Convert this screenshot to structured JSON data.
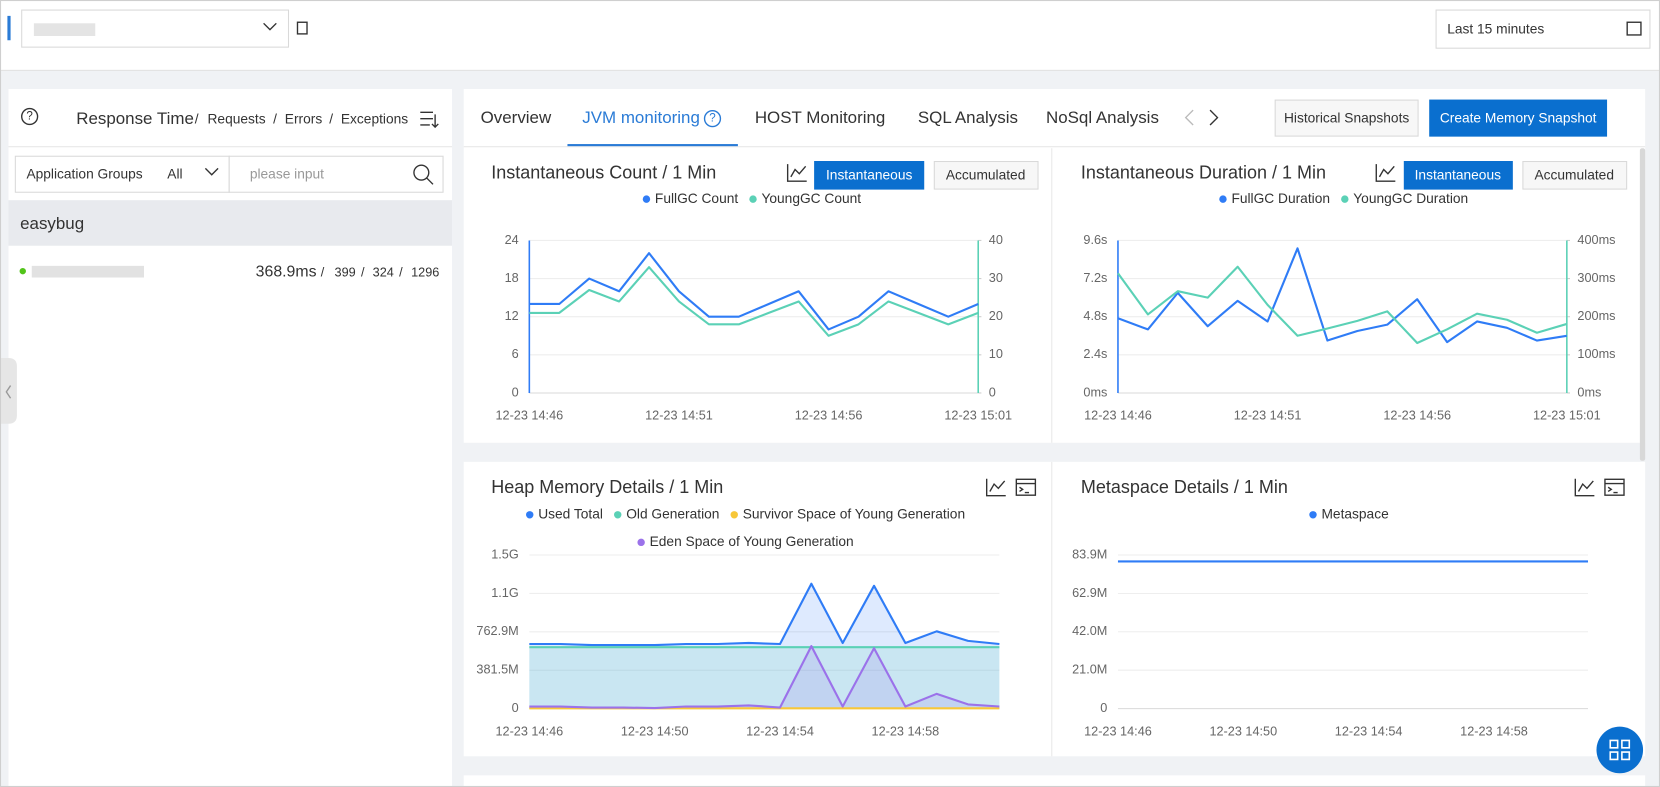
{
  "ui": {
    "time_range": "Last 15 minutes",
    "left": {
      "metrics": [
        "Response Time",
        "Requests",
        "Errors",
        "Exceptions"
      ],
      "separator": "/",
      "filter_label": "Application Groups",
      "filter_value": "All",
      "search_placeholder": "please input",
      "group": "easybug",
      "app": {
        "response_time": "368.9ms",
        "requests": 399,
        "errors": 324,
        "exceptions": 1296
      }
    },
    "tabs": [
      "Overview",
      "JVM monitoring",
      "HOST Monitoring",
      "SQL Analysis",
      "NoSql Analysis"
    ],
    "buttons": [
      "Historical Snapshots",
      "Create Memory Snapshot"
    ],
    "chart_modes": [
      "Instantaneous",
      "Accumulated"
    ]
  },
  "chart_data": [
    {
      "type": "line",
      "title": "Instantaneous Count / 1 Min",
      "categories": [
        "12-23 14:46",
        null,
        null,
        null,
        null,
        "12-23 14:51",
        null,
        null,
        null,
        null,
        "12-23 14:56",
        null,
        null,
        null,
        null,
        "12-23 15:01"
      ],
      "series": [
        {
          "name": "FullGC Count",
          "color": "#2f7cf6",
          "values": [
            14,
            14,
            18,
            16,
            22,
            16,
            12,
            12,
            14,
            16,
            10,
            12,
            16,
            14,
            12,
            14
          ]
        },
        {
          "name": "YoungGC Count",
          "color": "#5bd1b6",
          "axis": "y2",
          "values": [
            21,
            21,
            27,
            24,
            33,
            24,
            18,
            18,
            21,
            24,
            15,
            18,
            24,
            21,
            18,
            21
          ]
        }
      ],
      "ylim": [
        0,
        24
      ],
      "yticks": [
        0,
        6,
        12,
        18,
        24
      ],
      "y2lim": [
        0,
        40
      ],
      "y2ticks": [
        0,
        10,
        20,
        30,
        40
      ],
      "grid": true,
      "legend": "top"
    },
    {
      "type": "line",
      "title": "Instantaneous Duration / 1 Min",
      "categories": [
        "12-23 14:46",
        null,
        null,
        null,
        null,
        "12-23 14:51",
        null,
        null,
        null,
        null,
        "12-23 14:56",
        null,
        null,
        null,
        null,
        "12-23 15:01"
      ],
      "series": [
        {
          "name": "FullGC Duration",
          "color": "#2f7cf6",
          "values": [
            4.7,
            4.0,
            6.3,
            4.2,
            5.8,
            4.5,
            9.1,
            3.3,
            3.9,
            4.3,
            5.9,
            3.2,
            4.5,
            4.1,
            3.3,
            3.6
          ]
        },
        {
          "name": "YoungGC Duration",
          "color": "#5bd1b6",
          "axis": "y2",
          "values": [
            314,
            206,
            267,
            250,
            331,
            231,
            150,
            169,
            189,
            214,
            131,
            167,
            208,
            192,
            158,
            181
          ]
        }
      ],
      "ylim": [
        0,
        9.6
      ],
      "yticks": [
        {
          "value": 0,
          "label": "0ms"
        },
        {
          "value": 2.4,
          "label": "2.4s"
        },
        {
          "value": 4.8,
          "label": "4.8s"
        },
        {
          "value": 7.2,
          "label": "7.2s"
        },
        {
          "value": 9.6,
          "label": "9.6s"
        }
      ],
      "y2lim": [
        0,
        400
      ],
      "y2ticks": [
        {
          "value": 0,
          "label": "0ms"
        },
        {
          "value": 100,
          "label": "100ms"
        },
        {
          "value": 200,
          "label": "200ms"
        },
        {
          "value": 300,
          "label": "300ms"
        },
        {
          "value": 400,
          "label": "400ms"
        }
      ],
      "grid": true,
      "legend": "top"
    },
    {
      "type": "line",
      "title": "Heap Memory Details / 1 Min",
      "categories": [
        "12-23 14:46",
        null,
        null,
        null,
        "12-23 14:50",
        null,
        null,
        null,
        "12-23 14:54",
        null,
        null,
        null,
        "12-23 14:58",
        null,
        null,
        null
      ],
      "series": [
        {
          "name": "Used Total",
          "color": "#2f7cf6",
          "area": true,
          "values": [
            642,
            642,
            631,
            631,
            631,
            642,
            642,
            652,
            642,
            1241,
            652,
            1220,
            652,
            768,
            673,
            642
          ]
        },
        {
          "name": "Old Generation",
          "color": "#5bd1b6",
          "area": true,
          "values": [
            610,
            610,
            610,
            610,
            610,
            610,
            610,
            610,
            610,
            610,
            610,
            610,
            610,
            610,
            610,
            610
          ]
        },
        {
          "name": "Survivor Space of Young Generation",
          "color": "#f7c739",
          "values": [
            3,
            3,
            3,
            3,
            3,
            3,
            3,
            3,
            3,
            3,
            3,
            3,
            3,
            3,
            3,
            3
          ]
        },
        {
          "name": "Eden Space of Young Generation",
          "color": "#9b72ea",
          "area": true,
          "values": [
            21,
            21,
            11,
            11,
            5,
            21,
            21,
            32,
            11,
            621,
            21,
            600,
            21,
            147,
            42,
            21
          ]
        }
      ],
      "ylim": [
        0,
        1525.9
      ],
      "yticks": [
        0,
        {
          "value": 381.5,
          "label": "381.5M"
        },
        {
          "value": 762.9,
          "label": "762.9M"
        },
        {
          "value": 1144.4,
          "label": "1.1G"
        },
        {
          "value": 1525.9,
          "label": "1.5G"
        }
      ],
      "grid": true,
      "legend": "top"
    },
    {
      "type": "line",
      "title": "Metaspace Details / 1 Min",
      "categories": [
        "12-23 14:46",
        null,
        null,
        null,
        "12-23 14:50",
        null,
        null,
        null,
        "12-23 14:54",
        null,
        null,
        null,
        "12-23 14:58",
        null,
        null,
        null
      ],
      "series": [
        {
          "name": "Metaspace",
          "color": "#2f7cf6",
          "values": [
            80.4,
            80.4,
            80.4,
            80.4,
            80.4,
            80.4,
            80.4,
            80.4,
            80.4,
            80.4,
            80.4,
            80.4,
            80.4,
            80.4,
            80.4,
            80.4
          ]
        }
      ],
      "ylim": [
        0,
        83.9
      ],
      "yticks": [
        0,
        {
          "value": 21.0,
          "label": "21.0M"
        },
        {
          "value": 42.0,
          "label": "42.0M"
        },
        {
          "value": 62.9,
          "label": "62.9M"
        },
        {
          "value": 83.9,
          "label": "83.9M"
        }
      ],
      "grid": true,
      "legend": "top"
    }
  ]
}
